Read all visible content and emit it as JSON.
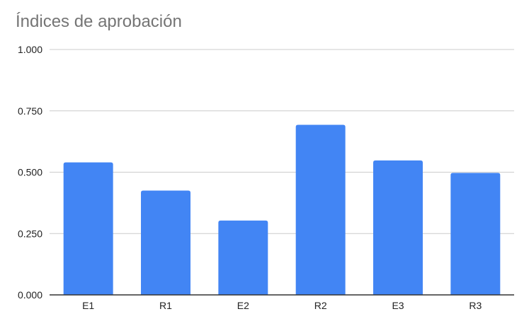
{
  "chart_data": {
    "type": "bar",
    "title": "Índices de aprobación",
    "categories": [
      "E1",
      "R1",
      "E2",
      "R2",
      "E3",
      "R3"
    ],
    "values": [
      0.54,
      0.425,
      0.303,
      0.693,
      0.548,
      0.497
    ],
    "ylim": [
      0,
      1
    ],
    "yticks": [
      "0.000",
      "0.250",
      "0.500",
      "0.750",
      "1.000"
    ],
    "ytick_values": [
      0,
      0.25,
      0.5,
      0.75,
      1
    ],
    "grid": true,
    "legend": "none",
    "colors": {
      "bar": "#4285f4",
      "grid": "#cccccc",
      "axis": "#333333",
      "title": "#757575"
    }
  }
}
